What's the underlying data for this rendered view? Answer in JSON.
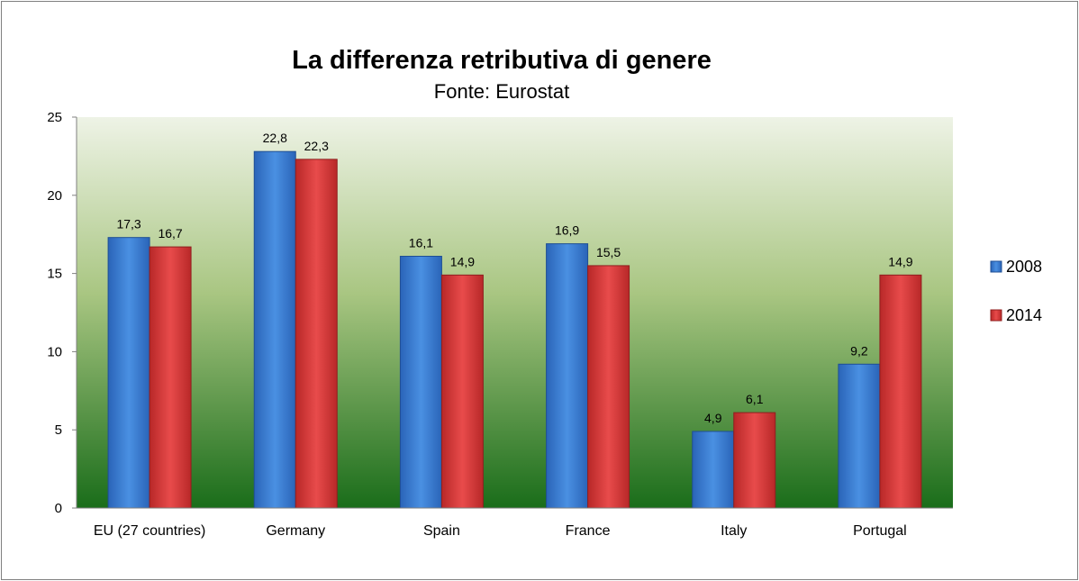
{
  "chart_data": {
    "type": "bar",
    "title": "La differenza retributiva di genere",
    "subtitle": "Fonte: Eurostat",
    "categories": [
      "EU (27 countries)",
      "Germany",
      "Spain",
      "France",
      "Italy",
      "Portugal"
    ],
    "series": [
      {
        "name": "2008",
        "values": [
          17.3,
          22.8,
          16.1,
          16.9,
          4.9,
          9.2
        ],
        "color": "#3a7fd5"
      },
      {
        "name": "2014",
        "values": [
          16.7,
          22.3,
          14.9,
          15.5,
          6.1,
          14.9
        ],
        "color": "#d93a3a"
      }
    ],
    "value_labels": [
      [
        "17,3",
        "22,8",
        "16,1",
        "16,9",
        "4,9",
        "9,2"
      ],
      [
        "16,7",
        "22,3",
        "14,9",
        "15,5",
        "6,1",
        "14,9"
      ]
    ],
    "ylim": [
      0,
      25
    ],
    "yticks": [
      0,
      5,
      10,
      15,
      20,
      25
    ],
    "xlabel": "",
    "ylabel": "",
    "legend_position": "right",
    "grid": false,
    "plot_background": "gradient light green to dark green"
  }
}
